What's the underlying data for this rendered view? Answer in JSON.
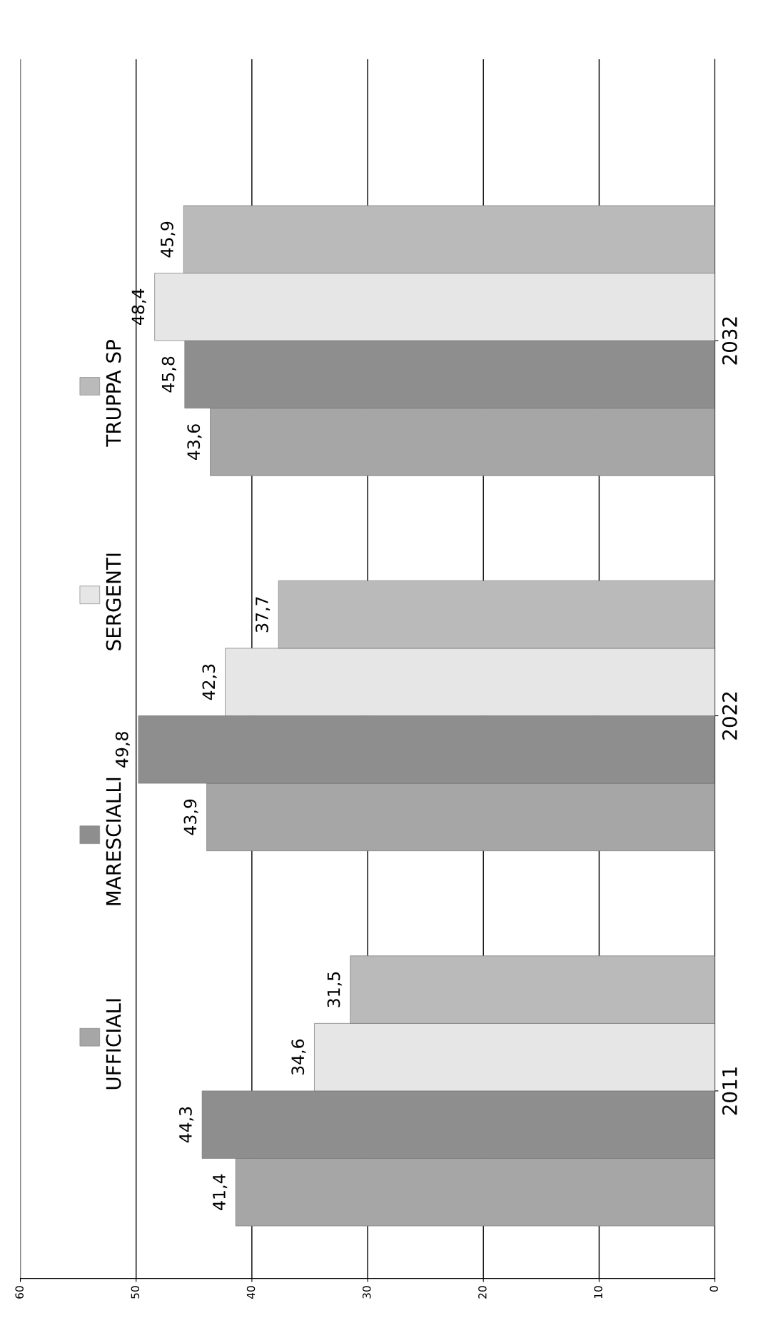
{
  "chart_data": {
    "type": "bar",
    "orientation": "horizontal",
    "categories": [
      "2032",
      "2022",
      "2011"
    ],
    "series": [
      {
        "name": "UFFICIALI",
        "color": "#a6a6a6",
        "values": [
          43.6,
          43.9,
          41.4
        ]
      },
      {
        "name": "MARESCIALLI",
        "color": "#8e8e8e",
        "values": [
          45.8,
          49.8,
          44.3
        ]
      },
      {
        "name": "SERGENTI",
        "color": "#e6e6e6",
        "values": [
          48.4,
          42.3,
          34.6
        ]
      },
      {
        "name": "TRUPPA SP",
        "color": "#bababa",
        "values": [
          45.9,
          37.7,
          31.5
        ]
      }
    ],
    "value_labels": [
      [
        "43,6",
        "43,9",
        "41,4"
      ],
      [
        "45,8",
        "49,8",
        "44,3"
      ],
      [
        "48,4",
        "42,3",
        "34,6"
      ],
      [
        "45,9",
        "37,7",
        "31,5"
      ]
    ],
    "xlim": [
      60,
      0
    ],
    "xticks": [
      0,
      10,
      20,
      30,
      40,
      50,
      60
    ],
    "grid": "x",
    "legend": "left"
  }
}
